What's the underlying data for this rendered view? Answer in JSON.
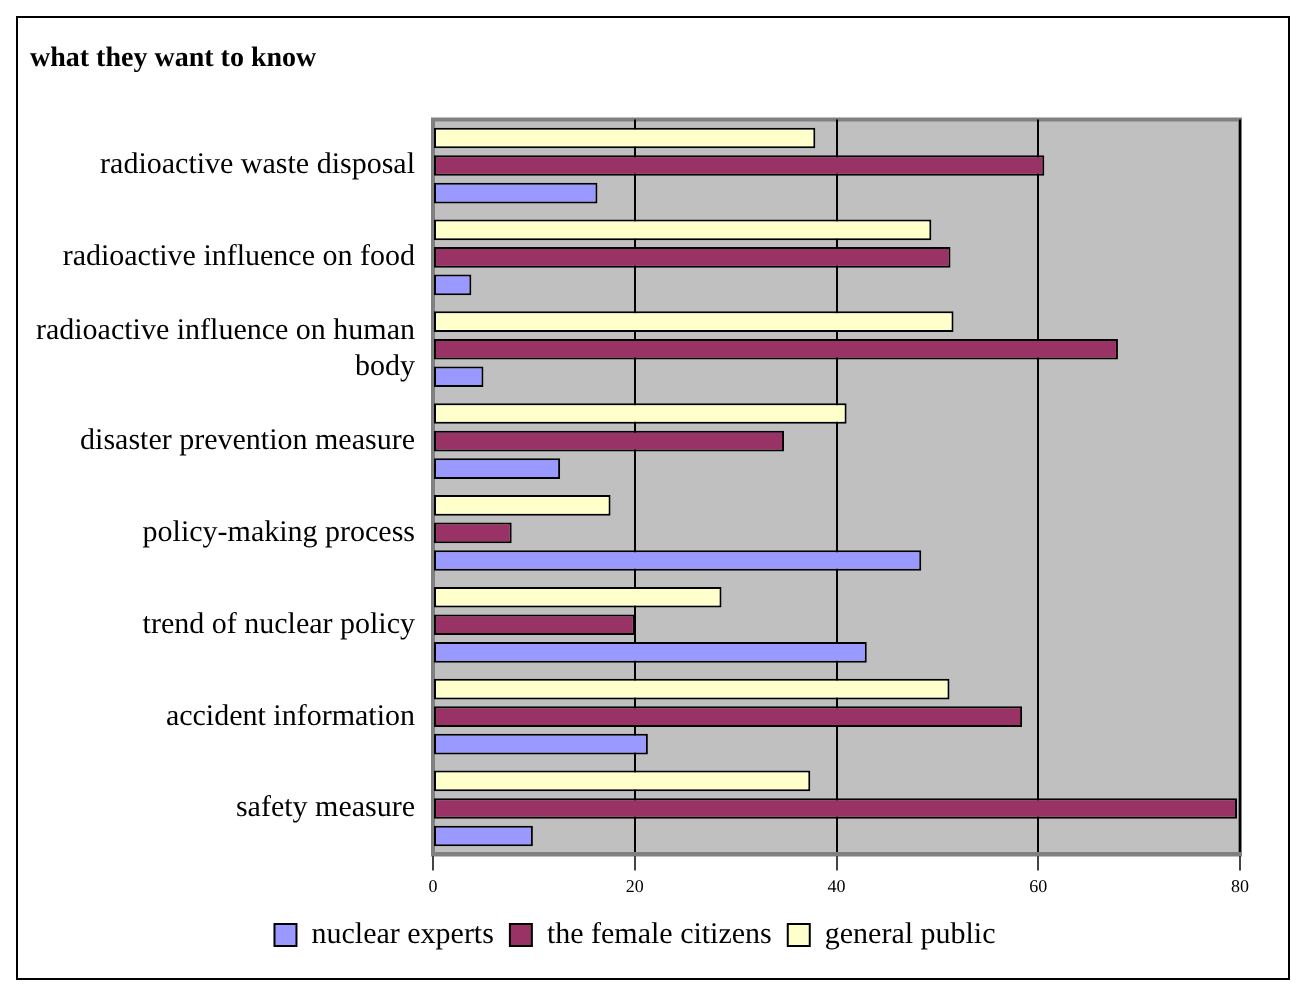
{
  "chart_data": {
    "type": "bar",
    "title": "what they want to know",
    "orientation": "horizontal",
    "categories": [
      "radioactive waste disposal",
      "radioactive influence on food",
      "radioactive influence on human body",
      "disaster prevention measure",
      "policy-making process",
      "trend of nuclear policy",
      "accident information",
      "safety measure"
    ],
    "series": [
      {
        "name": "nuclear experts",
        "color": "#9999ff",
        "values": [
          16.3,
          3.8,
          5.0,
          12.6,
          48.4,
          43.0,
          21.3,
          9.9
        ]
      },
      {
        "name": "the female citizens",
        "color": "#993366",
        "values": [
          60.6,
          51.3,
          67.9,
          34.8,
          7.8,
          20.0,
          58.4,
          79.7
        ]
      },
      {
        "name": "general public",
        "color": "#ffffcc",
        "values": [
          37.9,
          49.4,
          51.6,
          41.0,
          17.6,
          28.6,
          51.2,
          37.4
        ]
      }
    ],
    "xlim": [
      0,
      80
    ],
    "xticks": [
      0,
      20,
      40,
      60,
      80
    ],
    "grid": "x",
    "legend": "bottom"
  }
}
